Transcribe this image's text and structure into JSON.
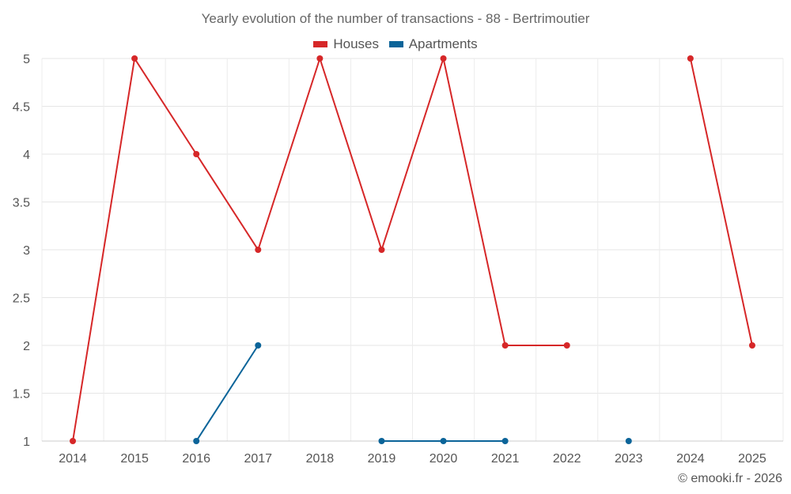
{
  "chart_data": {
    "type": "line",
    "title": "Yearly evolution of the number of transactions - 88 - Bertrimoutier",
    "xlabel": "",
    "ylabel": "",
    "categories": [
      "2014",
      "2015",
      "2016",
      "2017",
      "2018",
      "2019",
      "2020",
      "2021",
      "2022",
      "2023",
      "2024",
      "2025"
    ],
    "ylim": [
      1,
      5
    ],
    "yticks": [
      1,
      1.5,
      2,
      2.5,
      3,
      3.5,
      4,
      4.5,
      5
    ],
    "grid": true,
    "legend_position": "top-center",
    "series": [
      {
        "name": "Houses",
        "color": "#d62728",
        "values": [
          1,
          5,
          4,
          3,
          5,
          3,
          5,
          2,
          2,
          null,
          5,
          2
        ]
      },
      {
        "name": "Apartments",
        "color": "#0b6499",
        "values": [
          null,
          null,
          1,
          2,
          null,
          1,
          1,
          1,
          null,
          1,
          null,
          null
        ]
      }
    ]
  },
  "footer": {
    "credit": "© emooki.fr - 2026"
  }
}
